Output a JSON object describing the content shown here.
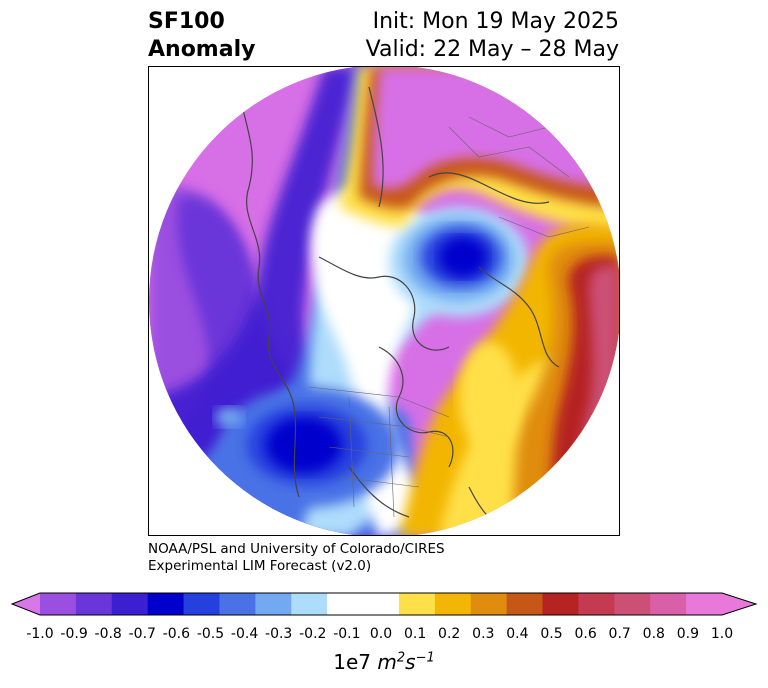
{
  "header": {
    "variable": "SF100",
    "field": "Anomaly",
    "init": "Init: Mon 19 May 2025",
    "valid": "Valid: 22 May – 28 May"
  },
  "credit": {
    "line1": "NOAA/PSL and University of Colorado/CIRES",
    "line2": "Experimental LIM Forecast (v2.0)"
  },
  "colorbar": {
    "ticks": [
      "-1.0",
      "-0.9",
      "-0.8",
      "-0.7",
      "-0.6",
      "-0.5",
      "-0.4",
      "-0.3",
      "-0.2",
      "-0.1",
      "0.0",
      "0.1",
      "0.2",
      "0.3",
      "0.4",
      "0.5",
      "0.6",
      "0.7",
      "0.8",
      "0.9",
      "1.0"
    ],
    "colors": [
      "#9b4fe0",
      "#6a35d9",
      "#3c1fd0",
      "#0000cd",
      "#2540de",
      "#4a72e6",
      "#72a9f0",
      "#aedcfb",
      "#ffffff",
      "#ffffff",
      "#ffe04a",
      "#f2b606",
      "#e08c0f",
      "#c65717",
      "#b52322",
      "#c43a4e",
      "#cc5076",
      "#d960a8",
      "#e878da"
    ],
    "under_color": "#d878e8",
    "over_color": "#e878da",
    "units_base": "1e7",
    "units_m": "m",
    "units_m_exp": "2",
    "units_s": "s",
    "units_s_exp": "−1"
  },
  "map": {
    "projection": "north-polar-stereographic",
    "features": [
      "coastlines",
      "country borders",
      "US state borders"
    ]
  }
}
